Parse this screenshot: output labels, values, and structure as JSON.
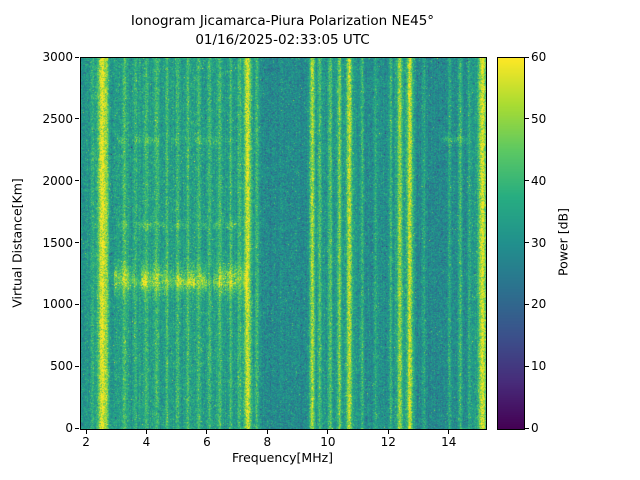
{
  "figure": {
    "title_line1": "Ionogram Jicamarca-Piura Polarization NE45°",
    "title_line2": "01/16/2025-02:33:05 UTC"
  },
  "chart_data": {
    "type": "heatmap",
    "title": "Ionogram Jicamarca-Piura Polarization NE45°",
    "subtitle": "01/16/2025-02:33:05 UTC",
    "xlabel": "Frequency[MHz]",
    "ylabel": "Virtual Distance[Km]",
    "colorbar_label": "Power [dB]",
    "colormap": "viridis",
    "x_range": [
      1.8,
      15.2
    ],
    "y_range": [
      0,
      3000
    ],
    "power_range": [
      0,
      60
    ],
    "x_ticks": [
      2,
      4,
      6,
      8,
      10,
      12,
      14
    ],
    "y_ticks": [
      0,
      500,
      1000,
      1500,
      2000,
      2500,
      3000
    ],
    "colorbar_ticks": [
      0,
      10,
      20,
      30,
      40,
      50,
      60
    ],
    "background_db": 31,
    "noise_sigma_db": 4.2,
    "brightness_zones": [
      {
        "from": 2.9,
        "to": 7.25,
        "db": 2.0
      },
      {
        "from": 7.8,
        "to": 9.35,
        "db": -2.0
      },
      {
        "from": 11.2,
        "to": 12.15,
        "db": -1.0
      },
      {
        "from": 12.9,
        "to": 14.6,
        "db": -2.5
      }
    ],
    "rfi_stripes": [
      {
        "mhz": 2.18,
        "sigma": 0.04,
        "db": 8
      },
      {
        "mhz": 2.5,
        "sigma": 0.1,
        "db": 27
      },
      {
        "mhz": 2.66,
        "sigma": 0.04,
        "db": 12
      },
      {
        "mhz": 3.25,
        "sigma": 0.05,
        "db": 9
      },
      {
        "mhz": 3.6,
        "sigma": 0.04,
        "db": 7
      },
      {
        "mhz": 3.95,
        "sigma": 0.05,
        "db": 8
      },
      {
        "mhz": 4.3,
        "sigma": 0.05,
        "db": 9
      },
      {
        "mhz": 4.65,
        "sigma": 0.04,
        "db": 8
      },
      {
        "mhz": 5.0,
        "sigma": 0.05,
        "db": 8
      },
      {
        "mhz": 5.35,
        "sigma": 0.04,
        "db": 9
      },
      {
        "mhz": 5.7,
        "sigma": 0.05,
        "db": 8
      },
      {
        "mhz": 6.05,
        "sigma": 0.04,
        "db": 8
      },
      {
        "mhz": 6.4,
        "sigma": 0.05,
        "db": 9
      },
      {
        "mhz": 6.75,
        "sigma": 0.04,
        "db": 8
      },
      {
        "mhz": 7.05,
        "sigma": 0.04,
        "db": 9
      },
      {
        "mhz": 7.32,
        "sigma": 0.08,
        "db": 26
      },
      {
        "mhz": 7.62,
        "sigma": 0.04,
        "db": 10
      },
      {
        "mhz": 9.45,
        "sigma": 0.06,
        "db": 22
      },
      {
        "mhz": 9.7,
        "sigma": 0.04,
        "db": 12
      },
      {
        "mhz": 10.05,
        "sigma": 0.05,
        "db": 13
      },
      {
        "mhz": 10.35,
        "sigma": 0.05,
        "db": 16
      },
      {
        "mhz": 10.68,
        "sigma": 0.07,
        "db": 24
      },
      {
        "mhz": 11.1,
        "sigma": 0.04,
        "db": 10
      },
      {
        "mhz": 11.55,
        "sigma": 0.04,
        "db": 7
      },
      {
        "mhz": 12.05,
        "sigma": 0.04,
        "db": 10
      },
      {
        "mhz": 12.35,
        "sigma": 0.06,
        "db": 20
      },
      {
        "mhz": 12.68,
        "sigma": 0.07,
        "db": 24
      },
      {
        "mhz": 13.15,
        "sigma": 0.04,
        "db": 7
      },
      {
        "mhz": 14.0,
        "sigma": 0.04,
        "db": 8
      },
      {
        "mhz": 14.35,
        "sigma": 0.05,
        "db": 12
      },
      {
        "mhz": 14.65,
        "sigma": 0.04,
        "db": 8
      },
      {
        "mhz": 15.08,
        "sigma": 0.09,
        "db": 26
      }
    ],
    "echo_traces": [
      {
        "km": 1210,
        "sigma_km": 80,
        "mhz_from": 2.9,
        "mhz_to": 7.3,
        "db": 11,
        "fill": 0.9
      },
      {
        "km": 1185,
        "sigma_km": 28,
        "mhz_from": 3.2,
        "mhz_to": 6.4,
        "db": 8,
        "fill": 0.8
      },
      {
        "km": 1650,
        "sigma_km": 22,
        "mhz_from": 2.9,
        "mhz_to": 7.0,
        "db": 6,
        "fill": 0.5
      },
      {
        "km": 2335,
        "sigma_km": 22,
        "mhz_from": 3.0,
        "mhz_to": 7.4,
        "db": 6,
        "fill": 0.5
      },
      {
        "km": 2340,
        "sigma_km": 22,
        "mhz_from": 13.6,
        "mhz_to": 14.6,
        "db": 7,
        "fill": 0.6
      }
    ]
  }
}
